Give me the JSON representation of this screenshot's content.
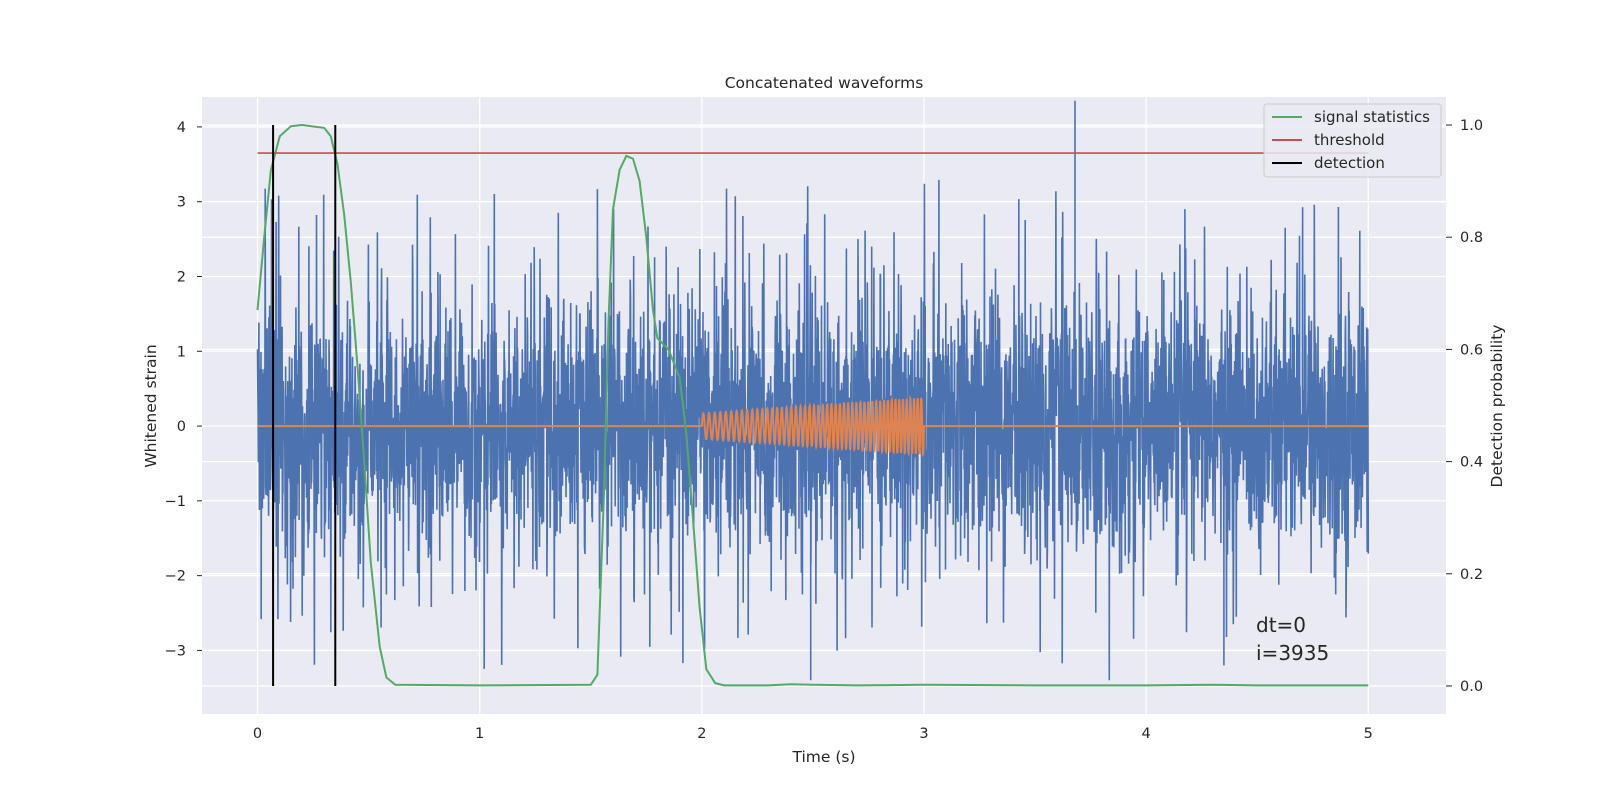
{
  "chart_data": {
    "type": "line",
    "title": "Concatenated waveforms",
    "xlabel": "Time (s)",
    "ylabel": "Whitened strain",
    "y2label": "Detection probability",
    "xlim": [
      -0.25,
      5.35
    ],
    "ylim": [
      -3.85,
      4.4
    ],
    "y2lim": [
      -0.05,
      1.05
    ],
    "x_ticks": [
      0,
      1,
      2,
      3,
      4,
      5
    ],
    "y_ticks": [
      -3,
      -2,
      -1,
      0,
      1,
      2,
      3,
      4
    ],
    "y2_ticks": [
      0.0,
      0.2,
      0.4,
      0.6,
      0.8,
      1.0
    ],
    "x_tick_labels": [
      "0",
      "1",
      "2",
      "3",
      "4",
      "5"
    ],
    "y_tick_labels": [
      "−3",
      "−2",
      "−1",
      "0",
      "1",
      "2",
      "3",
      "4"
    ],
    "y2_tick_labels": [
      "0.0",
      "0.2",
      "0.4",
      "0.6",
      "0.8",
      "1.0"
    ],
    "grid": true,
    "legend_position": "top-right",
    "legend": [
      {
        "label": "signal statistics",
        "color": "#55a868"
      },
      {
        "label": "threshold",
        "color": "#c44e52"
      },
      {
        "label": "detection",
        "color": "#000000"
      }
    ],
    "series": [
      {
        "kind": "noise",
        "axis": "left",
        "color": "#4c72b0",
        "x_range": [
          0,
          5
        ],
        "typical_range": [
          -1.8,
          1.8
        ],
        "extremes": [
          -3.4,
          4.35
        ]
      },
      {
        "kind": "injected-chirp",
        "axis": "left",
        "color": "#dd8452",
        "flat_zero_range": [
          0,
          5
        ],
        "chirp_x_range": [
          2.0,
          3.0
        ],
        "chirp_amplitude": [
          0.17,
          0.38
        ]
      },
      {
        "name": "signal statistics",
        "axis": "right",
        "color": "#55a868",
        "x": [
          0,
          0.03,
          0.06,
          0.1,
          0.15,
          0.2,
          0.3,
          0.33,
          0.36,
          0.39,
          0.42,
          0.45,
          0.48,
          0.51,
          0.55,
          0.58,
          0.62,
          1.0,
          1.5,
          1.53,
          1.56,
          1.58,
          1.6,
          1.63,
          1.66,
          1.69,
          1.72,
          1.75,
          1.78,
          1.8,
          1.85,
          1.9,
          1.93,
          1.96,
          1.99,
          2.02,
          2.06,
          2.1,
          2.3,
          2.4,
          2.5,
          2.7,
          3.0,
          3.5,
          4.0,
          4.3,
          4.5,
          5.0
        ],
        "y": [
          0.67,
          0.8,
          0.92,
          0.98,
          0.998,
          1.0,
          0.995,
          0.98,
          0.93,
          0.84,
          0.72,
          0.57,
          0.4,
          0.22,
          0.07,
          0.015,
          0.002,
          0.001,
          0.002,
          0.02,
          0.35,
          0.65,
          0.85,
          0.92,
          0.945,
          0.94,
          0.9,
          0.8,
          0.67,
          0.62,
          0.6,
          0.55,
          0.45,
          0.3,
          0.14,
          0.03,
          0.005,
          0.001,
          0.001,
          0.003,
          0.002,
          0.001,
          0.002,
          0.001,
          0.001,
          0.002,
          0.001,
          0.001
        ]
      },
      {
        "name": "threshold",
        "axis": "right",
        "color": "#c44e52",
        "x": [
          0,
          5
        ],
        "y": [
          0.95,
          0.95
        ]
      },
      {
        "name": "detection",
        "axis": "right",
        "color": "#000000",
        "vertical_lines_x": [
          0.07,
          0.35
        ],
        "y_span": [
          0.0,
          1.0
        ]
      }
    ],
    "annotations": [
      "dt=0",
      "i=3935"
    ]
  }
}
